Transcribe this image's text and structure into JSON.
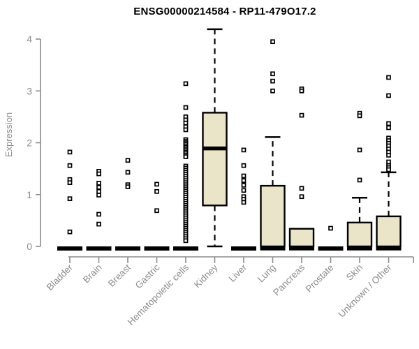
{
  "title": "ENSG00000214584 - RP11-479O17.2",
  "chart_data": {
    "type": "boxplot",
    "title": "ENSG00000214584 - RP11-479O17.2",
    "xlabel": "",
    "ylabel": "Expression",
    "ylim": [
      0,
      4.2
    ],
    "yticks": [
      0,
      1,
      2,
      3,
      4
    ],
    "grid": false,
    "legend": "none",
    "box_fill": "#EAE4C8",
    "box_stroke": "#000000",
    "axis_color": "#8C8C8C",
    "label_color": "#8C8C8C",
    "background": "#FFFFFF",
    "categories": [
      "Bladder",
      "Brain",
      "Breast",
      "Gastric",
      "Hematopoietic cells",
      "Kidney",
      "Liver",
      "Lung",
      "Pancreas",
      "Prostate",
      "Skin",
      "Unknown / Other"
    ],
    "series": [
      {
        "name": "Bladder",
        "q1": 0,
        "median": 0,
        "q3": 0,
        "whisker_low": 0,
        "whisker_high": 0,
        "outliers": [
          1.82,
          1.56,
          1.29,
          1.23,
          0.92,
          0.28
        ]
      },
      {
        "name": "Brain",
        "q1": 0,
        "median": 0,
        "q3": 0,
        "whisker_low": 0,
        "whisker_high": 0,
        "outliers": [
          1.45,
          1.4,
          1.22,
          1.14,
          1.06,
          0.99,
          0.62,
          0.43
        ]
      },
      {
        "name": "Breast",
        "q1": 0,
        "median": 0,
        "q3": 0,
        "whisker_low": 0,
        "whisker_high": 0,
        "outliers": [
          1.66,
          1.43,
          1.19,
          1.15
        ]
      },
      {
        "name": "Gastric",
        "q1": 0,
        "median": 0,
        "q3": 0,
        "whisker_low": 0,
        "whisker_high": 0,
        "outliers": [
          1.2,
          1.06,
          0.69
        ]
      },
      {
        "name": "Hematopoietic cells",
        "q1": 0,
        "median": 0,
        "q3": 0,
        "whisker_low": 0,
        "whisker_high": 0,
        "outliers": [
          3.14,
          2.68,
          2.5,
          2.44,
          2.38,
          2.31,
          2.25,
          2.06,
          2.03,
          2.0,
          1.97,
          1.94,
          1.91,
          1.88,
          1.85,
          1.82,
          1.79,
          1.76,
          1.73,
          1.55,
          1.51,
          1.47,
          1.43,
          1.39,
          1.35,
          1.31,
          1.27,
          1.23,
          1.19,
          1.15,
          1.11,
          1.07,
          1.03,
          0.99,
          0.95,
          0.91,
          0.87,
          0.83,
          0.79,
          0.75,
          0.71,
          0.67,
          0.63,
          0.59,
          0.55,
          0.51,
          0.47,
          0.43,
          0.39,
          0.35,
          0.31,
          0.27,
          0.23,
          0.19,
          0.15,
          0.11
        ]
      },
      {
        "name": "Kidney",
        "q1": 0.79,
        "median": 1.89,
        "q3": 2.58,
        "whisker_low": 0,
        "whisker_high": 4.19,
        "outliers": []
      },
      {
        "name": "Liver",
        "q1": 0,
        "median": 0,
        "q3": 0,
        "whisker_low": 0,
        "whisker_high": 0,
        "outliers": [
          1.86,
          1.56,
          1.36,
          1.27,
          1.18,
          1.08,
          0.96,
          0.91,
          0.85
        ]
      },
      {
        "name": "Lung",
        "q1": 0,
        "median": 0,
        "q3": 1.17,
        "whisker_low": null,
        "whisker_high": 2.11,
        "outliers": [
          3.95,
          3.33,
          3.19,
          3.0
        ]
      },
      {
        "name": "Pancreas",
        "q1": 0,
        "median": 0,
        "q3": 0.34,
        "whisker_low": null,
        "whisker_high": null,
        "outliers": [
          3.04,
          3.0,
          2.53,
          1.12,
          0.96
        ]
      },
      {
        "name": "Prostate",
        "q1": 0,
        "median": 0,
        "q3": 0,
        "whisker_low": 0,
        "whisker_high": 0,
        "outliers": [
          0.35
        ]
      },
      {
        "name": "Skin",
        "q1": 0,
        "median": 0,
        "q3": 0.46,
        "whisker_low": null,
        "whisker_high": 0.94,
        "outliers": [
          2.57,
          2.52,
          1.86,
          1.28
        ]
      },
      {
        "name": "Unknown / Other",
        "q1": 0,
        "median": 0,
        "q3": 0.58,
        "whisker_low": null,
        "whisker_high": 1.43,
        "outliers": [
          3.26,
          2.91,
          2.37,
          2.29,
          2.09,
          2.04,
          1.99,
          1.94,
          1.88,
          1.82,
          1.76,
          1.63,
          1.56,
          1.52,
          1.48
        ]
      }
    ]
  }
}
